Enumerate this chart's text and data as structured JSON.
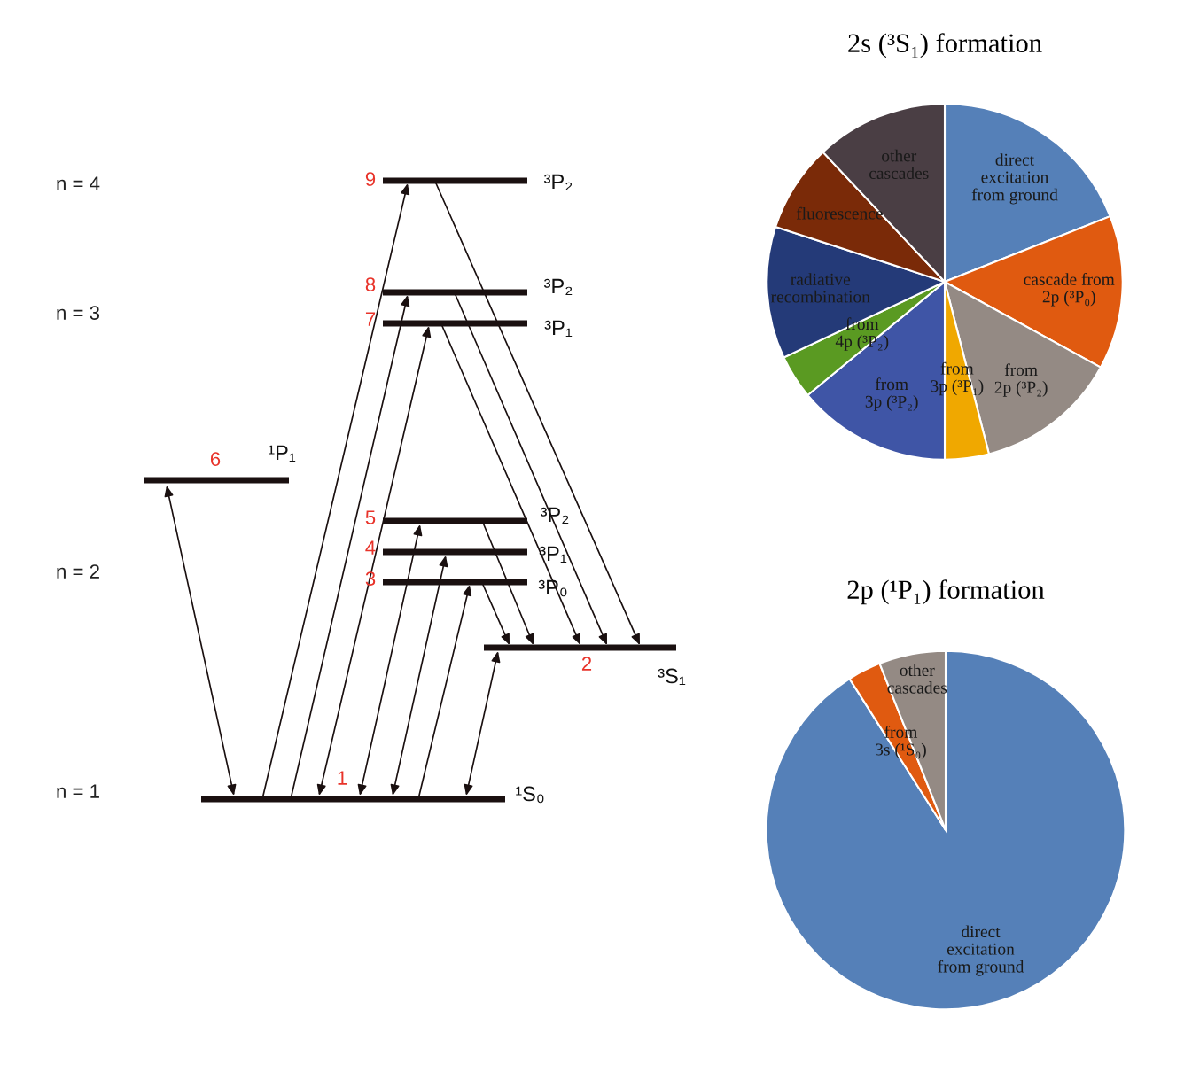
{
  "chart_data": [
    {
      "type": "other",
      "annotations": [
        "n = 4",
        "n = 3",
        "n = 2",
        "n = 1",
        "9",
        "8",
        "7",
        "6",
        "5",
        "4",
        "3",
        "2",
        "1",
        "³P₂",
        "³P₂",
        "³P₁",
        "¹P₁",
        "³P₂",
        "³P₁",
        "³P₀",
        "³S₁",
        "¹S₀"
      ]
    },
    {
      "type": "pie",
      "title": "2s (³S₁) formation",
      "categories": [
        "direct\nexcitation\nfrom ground",
        "cascade from\n2p (³P₀)",
        "from\n2p (³P₂)",
        "from\n3p (³P₁)",
        "from\n3p (³P₂)",
        "from\n4p (³P₂)",
        "radiative\nrecombination",
        "fluorescence",
        "other\ncascades"
      ],
      "values": [
        19,
        14,
        13,
        4,
        14,
        4,
        12,
        8,
        12
      ],
      "colors": [
        "#5580b8",
        "#e05a10",
        "#948a84",
        "#f0a800",
        "#3f55a6",
        "#5a9a22",
        "#243a78",
        "#7a2a08",
        "#4a3e44"
      ]
    },
    {
      "type": "pie",
      "title": "2p (¹P₁) formation",
      "categories": [
        "direct\nexcitation\nfrom ground",
        "from\n3s (¹S₀)",
        "other\ncascades"
      ],
      "values": [
        91,
        3,
        6
      ],
      "colors": [
        "#5580b8",
        "#e05a10",
        "#948a84"
      ]
    }
  ]
}
